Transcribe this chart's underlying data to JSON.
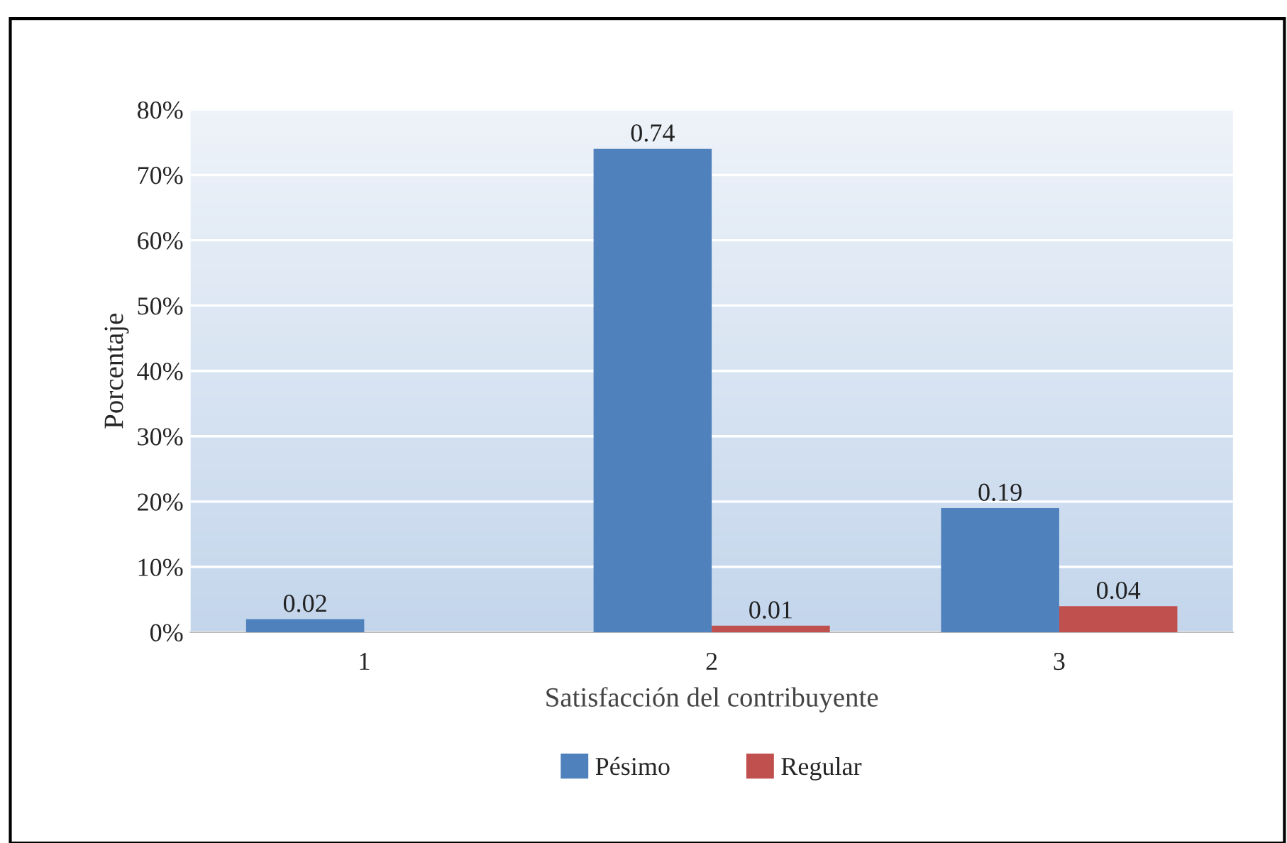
{
  "chart_data": {
    "type": "bar",
    "xlabel": "Satisfacción del contribuyente",
    "ylabel": "Porcentaje",
    "categories": [
      "1",
      "2",
      "3"
    ],
    "series": [
      {
        "name": "Pésimo",
        "color": "#4f81bd",
        "values": [
          0.02,
          0.74,
          0.19
        ]
      },
      {
        "name": "Regular",
        "color": "#c0504d",
        "values": [
          null,
          0.01,
          0.04
        ]
      }
    ],
    "ylim": [
      0,
      0.8
    ],
    "yticks": [
      {
        "value": 0,
        "label": "0%"
      },
      {
        "value": 0.1,
        "label": "10%"
      },
      {
        "value": 0.2,
        "label": "20%"
      },
      {
        "value": 0.3,
        "label": "30%"
      },
      {
        "value": 0.4,
        "label": "40%"
      },
      {
        "value": 0.5,
        "label": "50%"
      },
      {
        "value": 0.6,
        "label": "60%"
      },
      {
        "value": 0.7,
        "label": "70%"
      },
      {
        "value": 0.8,
        "label": "80%"
      }
    ],
    "grid": "y",
    "legend": "bottom",
    "data_labels": true
  }
}
